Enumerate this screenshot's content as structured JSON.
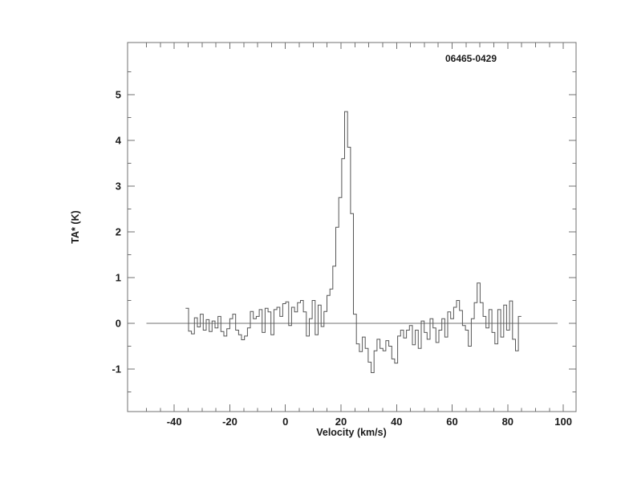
{
  "figure": {
    "background": "#ffffff"
  },
  "chart_data": {
    "type": "line",
    "line_style": "histogram-step",
    "title": "06465-0429",
    "xlabel": "Velocity (km/s)",
    "ylabel": "TA* (K)",
    "xlim": [
      -56.8,
      104.6
    ],
    "ylim": [
      -1.93,
      6.14
    ],
    "grid": false,
    "x_major_ticks": [
      -40,
      -20,
      0,
      20,
      40,
      60,
      80,
      100
    ],
    "x_tick_labels": [
      "-40",
      "-20",
      "0",
      "20",
      "40",
      "60",
      "80",
      "100"
    ],
    "x_minor_step": 5,
    "x_minor_range": [
      -50,
      100
    ],
    "y_major_ticks": [
      -1,
      0,
      1,
      2,
      3,
      4,
      5
    ],
    "y_tick_labels": [
      "-1",
      "0",
      "1",
      "2",
      "3",
      "4",
      "5"
    ],
    "y_minor_step": 0.5,
    "y_minor_range": [
      -1.5,
      5.5
    ],
    "zero_line": {
      "y": 0,
      "x_start": -50,
      "x_end": 98
    },
    "colors": {
      "line": "#555555",
      "axis": "#707070",
      "text": "#1a1a1a"
    },
    "series": [
      {
        "name": "spectrum",
        "v_start": -35.4,
        "dv": 1.06,
        "intensity_K": [
          0.33,
          -0.17,
          -0.23,
          0.12,
          -0.08,
          0.2,
          -0.15,
          0.08,
          -0.18,
          0.05,
          -0.1,
          0.15,
          -0.18,
          -0.28,
          -0.12,
          0.1,
          0.2,
          -0.15,
          -0.25,
          -0.36,
          -0.28,
          -0.1,
          0.26,
          0.1,
          0.15,
          0.3,
          -0.2,
          0.33,
          0.25,
          -0.25,
          0.3,
          0.35,
          0.15,
          0.43,
          0.47,
          -0.05,
          0.35,
          0.25,
          0.45,
          0.5,
          0.25,
          -0.28,
          0.1,
          0.5,
          -0.25,
          0.4,
          -0.07,
          0.26,
          0.61,
          0.75,
          1.25,
          2.1,
          2.75,
          3.6,
          4.63,
          3.85,
          2.4,
          0.2,
          -0.45,
          -0.62,
          -0.3,
          -0.55,
          -0.85,
          -1.08,
          -0.6,
          -0.35,
          -0.55,
          -0.6,
          -0.38,
          -0.5,
          -0.78,
          -0.87,
          -0.28,
          -0.15,
          -0.32,
          -0.15,
          -0.05,
          -0.47,
          -0.15,
          -0.55,
          0.05,
          -0.2,
          -0.35,
          0.1,
          -0.1,
          -0.42,
          -0.15,
          0.1,
          -0.3,
          0.25,
          0.1,
          0.35,
          0.5,
          0.28,
          -0.05,
          -0.15,
          -0.5,
          0.1,
          0.45,
          0.88,
          0.45,
          0.15,
          -0.1,
          0.3,
          -0.2,
          -0.45,
          0.3,
          -0.3,
          0.4,
          -0.15,
          0.49,
          -0.35,
          -0.6,
          0.15
        ]
      }
    ]
  }
}
